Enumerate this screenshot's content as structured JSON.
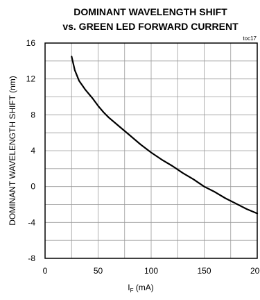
{
  "chart_data": {
    "type": "line",
    "title_line1": "DOMINANT WAVELENGTH SHIFT",
    "title_line2": "vs. GREEN LED FORWARD CURRENT",
    "tag": "toc17",
    "ylabel": "DOMINANT WAVELENGTH SHIFT (nm)",
    "xlabel": {
      "main": "I",
      "sub": "F",
      "unit": " (mA)"
    },
    "xlim": [
      0,
      200
    ],
    "ylim": [
      -8,
      16
    ],
    "x_ticks": [
      0,
      50,
      100,
      150,
      200
    ],
    "y_ticks": [
      16,
      12,
      8,
      4,
      0,
      -4,
      -8
    ],
    "x_grid": [
      25,
      50,
      75,
      100,
      125,
      150,
      175
    ],
    "y_grid": [
      14,
      12,
      10,
      8,
      6,
      4,
      2,
      0,
      -2,
      -4,
      -6
    ],
    "grid": true,
    "series": [
      {
        "x": [
          25,
          28,
          32,
          38,
          45,
          50,
          55,
          60,
          70,
          80,
          90,
          100,
          110,
          120,
          130,
          140,
          150,
          160,
          170,
          180,
          190,
          200
        ],
        "y": [
          14.5,
          13.0,
          11.8,
          10.8,
          9.8,
          9.0,
          8.3,
          7.7,
          6.7,
          5.7,
          4.7,
          3.8,
          3.0,
          2.3,
          1.5,
          0.8,
          0.0,
          -0.6,
          -1.3,
          -1.9,
          -2.5,
          -3.0
        ]
      }
    ]
  }
}
